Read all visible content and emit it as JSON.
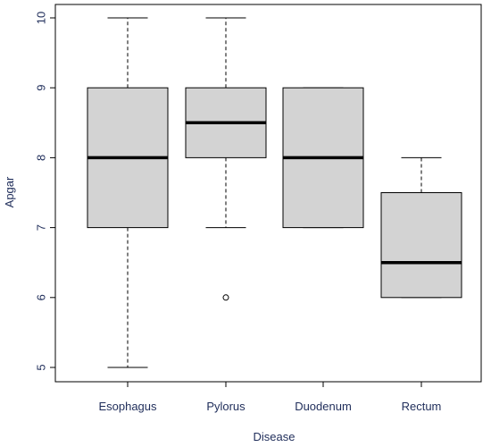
{
  "chart_data": {
    "type": "boxplot",
    "xlabel": "Disease",
    "ylabel": "Apgar",
    "ylim": [
      5,
      10
    ],
    "y_ticks": [
      5,
      6,
      7,
      8,
      9,
      10
    ],
    "categories": [
      "Esophagus",
      "Pylorus",
      "Duodenum",
      "Rectum"
    ],
    "boxes": [
      {
        "category": "Esophagus",
        "whisker_low": 5,
        "q1": 7,
        "median": 8,
        "q3": 9,
        "whisker_high": 10,
        "outliers": []
      },
      {
        "category": "Pylorus",
        "whisker_low": 7,
        "q1": 8,
        "median": 8.5,
        "q3": 9,
        "whisker_high": 10,
        "outliers": [
          6
        ]
      },
      {
        "category": "Duodenum",
        "whisker_low": 7,
        "q1": 7,
        "median": 8,
        "q3": 9,
        "whisker_high": 9,
        "outliers": []
      },
      {
        "category": "Rectum",
        "whisker_low": 6,
        "q1": 6,
        "median": 6.5,
        "q3": 7.5,
        "whisker_high": 8,
        "outliers": []
      }
    ],
    "box_fill": "#d3d3d3",
    "line_color": "#000000",
    "label_color": "#1f2d5a",
    "grid": false
  }
}
